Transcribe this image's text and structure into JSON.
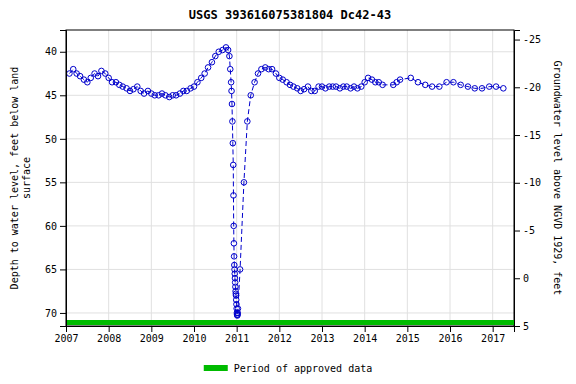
{
  "chart_data": {
    "type": "line",
    "title": "USGS 393616075381804 Dc42-43",
    "y_label": "Depth to water level, feet below land\nsurface",
    "y2_label": "Groundwater level above NGVD 1929, feet",
    "x": [
      2007.08,
      2007.17,
      2007.25,
      2007.33,
      2007.42,
      2007.5,
      2007.58,
      2007.67,
      2007.75,
      2007.83,
      2007.92,
      2008.0,
      2008.08,
      2008.17,
      2008.25,
      2008.33,
      2008.42,
      2008.5,
      2008.58,
      2008.67,
      2008.75,
      2008.83,
      2008.92,
      2009.0,
      2009.08,
      2009.17,
      2009.25,
      2009.33,
      2009.42,
      2009.5,
      2009.58,
      2009.67,
      2009.75,
      2009.83,
      2009.92,
      2010.0,
      2010.08,
      2010.17,
      2010.25,
      2010.33,
      2010.42,
      2010.5,
      2010.58,
      2010.67,
      2010.75,
      2010.8,
      2010.83,
      2010.85,
      2010.87,
      2010.88,
      2010.89,
      2010.9,
      2010.91,
      2010.92,
      2010.925,
      2010.93,
      2010.935,
      2010.94,
      2010.945,
      2010.95,
      2010.955,
      2010.96,
      2010.965,
      2010.97,
      2010.975,
      2010.98,
      2010.985,
      2010.99,
      2010.995,
      2011.0,
      2011.005,
      2011.01,
      2011.015,
      2011.02,
      2011.025,
      2011.03,
      2011.08,
      2011.17,
      2011.25,
      2011.33,
      2011.42,
      2011.5,
      2011.58,
      2011.67,
      2011.75,
      2011.83,
      2011.92,
      2012.0,
      2012.08,
      2012.17,
      2012.25,
      2012.33,
      2012.42,
      2012.5,
      2012.58,
      2012.67,
      2012.75,
      2012.83,
      2012.92,
      2013.0,
      2013.08,
      2013.17,
      2013.25,
      2013.33,
      2013.42,
      2013.5,
      2013.58,
      2013.67,
      2013.75,
      2013.83,
      2013.92,
      2014.0,
      2014.08,
      2014.17,
      2014.25,
      2014.33,
      2014.42,
      2014.67,
      2014.75,
      2014.83,
      2015.08,
      2015.25,
      2015.42,
      2015.58,
      2015.75,
      2015.92,
      2016.08,
      2016.25,
      2016.42,
      2016.58,
      2016.75,
      2016.92,
      2017.08,
      2017.25
    ],
    "series": [
      {
        "color": "#0000cc",
        "marker": "circle",
        "line_style": "dashed",
        "values": [
          42.5,
          42.0,
          42.5,
          42.8,
          43.2,
          43.5,
          43.0,
          42.5,
          42.8,
          42.2,
          42.5,
          43.0,
          43.5,
          43.5,
          43.8,
          44.0,
          44.2,
          44.5,
          44.3,
          44.0,
          44.5,
          44.8,
          44.5,
          44.8,
          45.0,
          45.0,
          44.8,
          45.0,
          45.2,
          45.0,
          45.0,
          44.8,
          44.5,
          44.5,
          44.2,
          44.0,
          43.5,
          43.0,
          42.5,
          41.8,
          41.2,
          40.5,
          40.0,
          39.8,
          39.5,
          39.8,
          40.5,
          42.0,
          43.5,
          44.5,
          46.0,
          48.0,
          50.5,
          53.0,
          56.5,
          60.0,
          62.0,
          63.5,
          64.5,
          65.0,
          65.5,
          66.0,
          66.5,
          67.0,
          67.5,
          67.8,
          68.0,
          68.5,
          69.0,
          69.5,
          70.0,
          70.2,
          70.3,
          70.2,
          70.0,
          69.5,
          65.0,
          55.0,
          48.0,
          45.0,
          43.5,
          42.5,
          42.0,
          41.8,
          42.0,
          42.0,
          42.5,
          43.0,
          43.2,
          43.5,
          43.8,
          44.0,
          44.2,
          44.5,
          44.3,
          44.0,
          44.5,
          44.5,
          44.0,
          44.0,
          44.2,
          44.0,
          44.0,
          44.0,
          44.2,
          44.0,
          44.0,
          44.2,
          44.0,
          44.2,
          44.0,
          43.5,
          43.0,
          43.2,
          43.5,
          43.5,
          43.8,
          43.8,
          43.5,
          43.2,
          43.0,
          43.5,
          43.8,
          44.0,
          44.0,
          43.5,
          43.5,
          43.8,
          44.0,
          44.2,
          44.2,
          44.0,
          44.0,
          44.2
        ]
      },
      {
        "name": "Period of approved data",
        "type": "band",
        "color": "#00bb00",
        "x": [
          2007.0,
          2017.5
        ]
      }
    ],
    "xlim": [
      2007.0,
      2017.5
    ],
    "xticks": [
      2007,
      2008,
      2009,
      2010,
      2011,
      2012,
      2013,
      2014,
      2015,
      2016,
      2017
    ],
    "ylim": [
      71.5,
      37.5
    ],
    "yticks": [
      40,
      45,
      50,
      55,
      60,
      65,
      70
    ],
    "y2lim": [
      5,
      -26
    ],
    "y2ticks": [
      5,
      0,
      -5,
      -10,
      -15,
      -20,
      -25
    ],
    "grid": true,
    "legend": "bottom"
  }
}
